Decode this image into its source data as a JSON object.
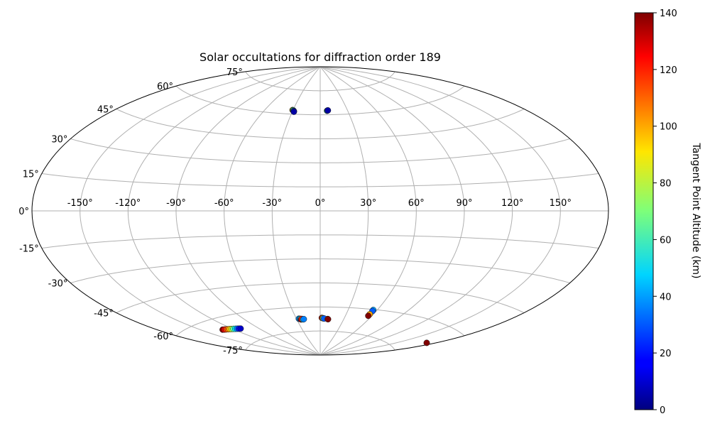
{
  "chart_data": {
    "type": "scatter",
    "projection": "aitoff",
    "title": "Solar occultations for diffraction order 189",
    "lon_ticks": [
      "-150°",
      "-120°",
      "-90°",
      "-60°",
      "-30°",
      "0°",
      "30°",
      "60°",
      "90°",
      "120°",
      "150°"
    ],
    "lon_tick_values": [
      -150,
      -120,
      -90,
      -60,
      -30,
      0,
      30,
      60,
      90,
      120,
      150
    ],
    "lat_ticks": [
      "75°",
      "60°",
      "45°",
      "30°",
      "15°",
      "0°",
      "-15°",
      "-30°",
      "-45°",
      "-60°",
      "-75°"
    ],
    "lat_tick_values": [
      75,
      60,
      45,
      30,
      15,
      0,
      -15,
      -30,
      -45,
      -60,
      -75
    ],
    "grid": true,
    "colorbar": {
      "label": "Tangent Point Altitude (km)",
      "ticks": [
        "0",
        "20",
        "40",
        "60",
        "80",
        "100",
        "120",
        "140"
      ],
      "tick_values": [
        0,
        20,
        40,
        60,
        80,
        100,
        120,
        140
      ],
      "min": 0,
      "max": 140,
      "colormap": "jet"
    },
    "series": [
      {
        "points": [
          [
            -30.5,
            62.5,
            100
          ],
          [
            -30.0,
            62.4,
            80
          ],
          [
            -29.5,
            62.3,
            60
          ],
          [
            -29.0,
            62.0,
            40
          ],
          [
            -28.5,
            61.8,
            20
          ],
          [
            -28.3,
            61.5,
            5
          ]
        ]
      },
      {
        "points": [
          [
            7.5,
            62.5,
            60
          ],
          [
            8.0,
            62.6,
            30
          ],
          [
            8.5,
            62.7,
            5
          ]
        ]
      },
      {
        "points": [
          [
            -131,
            -65.7,
            140
          ],
          [
            -129,
            -65.9,
            125
          ],
          [
            -127,
            -66.1,
            115
          ],
          [
            -125,
            -66.3,
            105
          ],
          [
            -123,
            -66.5,
            95
          ],
          [
            -121,
            -66.7,
            80
          ],
          [
            -119,
            -66.9,
            65
          ],
          [
            -117,
            -67.1,
            50
          ],
          [
            -115,
            -67.3,
            35
          ],
          [
            -113,
            -67.5,
            20
          ],
          [
            -111,
            -67.7,
            10
          ]
        ]
      },
      {
        "points": [
          [
            -27.0,
            -67.0,
            40
          ],
          [
            -26.0,
            -67.1,
            30
          ],
          [
            -25.0,
            -67.2,
            60
          ],
          [
            -24.5,
            -67.5,
            140
          ],
          [
            -23.5,
            -67.2,
            120
          ],
          [
            -22.0,
            -67.5,
            50
          ],
          [
            -21.0,
            -67.4,
            35
          ]
        ]
      },
      {
        "points": [
          [
            2.0,
            -66.8,
            140
          ],
          [
            3.0,
            -67.0,
            110
          ],
          [
            4.0,
            -67.1,
            60
          ],
          [
            5.0,
            -67.2,
            30
          ],
          [
            9.5,
            -67.5,
            100
          ],
          [
            10.0,
            -67.6,
            140
          ]
        ]
      },
      {
        "points": [
          [
            56.0,
            -60.3,
            40
          ],
          [
            56.0,
            -61.0,
            30
          ],
          [
            56.0,
            -63.0,
            100
          ],
          [
            56.0,
            -64.0,
            140
          ]
        ]
      },
      {
        "points": [
          [
            174.0,
            -68.0,
            140
          ]
        ]
      }
    ]
  }
}
